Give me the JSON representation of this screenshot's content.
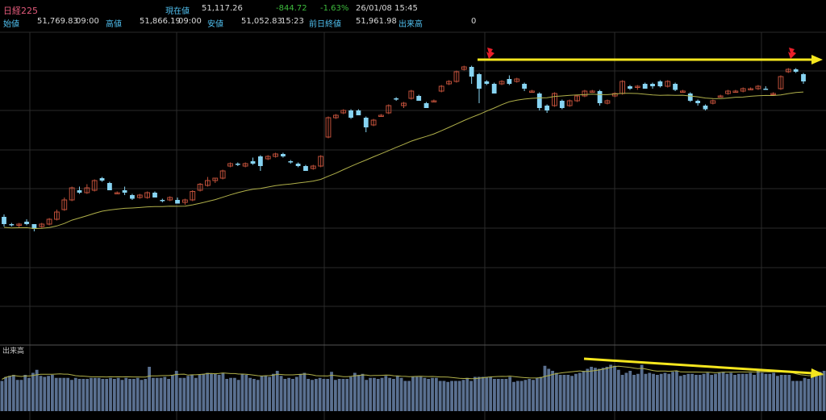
{
  "header": {
    "symbol": "日経225",
    "current_label": "現在値",
    "current_value": "51,117.26",
    "change": "-844.72",
    "change_pct": "-1.63%",
    "datetime": "26/01/08  15:45",
    "open_label": "始値",
    "open_value": "51,769.83",
    "open_time": "09:00",
    "high_label": "高値",
    "high_value": "51,866.19",
    "high_time": "09:00",
    "low_label": "安値",
    "low_value": "51,052.83",
    "low_time": "15:23",
    "prev_label": "前日終値",
    "prev_value": "51,961.98",
    "volume_label": "出来高",
    "volume_value": "0"
  },
  "colors": {
    "up": "#c0503a",
    "down": "#87d4f2",
    "ma": "#b0b04a",
    "volume": "#5a7090",
    "annotation": "#f5e61e",
    "marker": "#e8202a",
    "symbol": "#e15a7a",
    "positive": "#3dbb3d",
    "label": "#50c0f0"
  },
  "chart_data": {
    "type": "candlestick",
    "ylim": [
      0,
      100
    ],
    "candles": [
      {
        "o": 37,
        "h": 38,
        "l": 33,
        "c": 34
      },
      {
        "o": 34,
        "h": 34.5,
        "l": 33,
        "c": 33.5
      },
      {
        "o": 33.5,
        "h": 34.5,
        "l": 32.5,
        "c": 34
      },
      {
        "o": 35,
        "h": 36,
        "l": 33.5,
        "c": 34
      },
      {
        "o": 34,
        "h": 34,
        "l": 31,
        "c": 32
      },
      {
        "o": 33,
        "h": 34.5,
        "l": 32.5,
        "c": 34
      },
      {
        "o": 34,
        "h": 36.5,
        "l": 33.5,
        "c": 36
      },
      {
        "o": 36,
        "h": 40,
        "l": 35.5,
        "c": 39
      },
      {
        "o": 40,
        "h": 45,
        "l": 39.5,
        "c": 44
      },
      {
        "o": 44,
        "h": 49.5,
        "l": 43.5,
        "c": 49
      },
      {
        "o": 48,
        "h": 49.5,
        "l": 46.5,
        "c": 47
      },
      {
        "o": 47,
        "h": 50.5,
        "l": 46.5,
        "c": 49
      },
      {
        "o": 48,
        "h": 52.5,
        "l": 47.5,
        "c": 52
      },
      {
        "o": 53,
        "h": 53.5,
        "l": 51.5,
        "c": 52
      },
      {
        "o": 51,
        "h": 51.5,
        "l": 48,
        "c": 48
      },
      {
        "o": 47,
        "h": 47.5,
        "l": 46.5,
        "c": 47
      },
      {
        "o": 48,
        "h": 49.5,
        "l": 46,
        "c": 47
      },
      {
        "o": 46,
        "h": 46.5,
        "l": 44,
        "c": 44.5
      },
      {
        "o": 45,
        "h": 46.5,
        "l": 44.5,
        "c": 46
      },
      {
        "o": 45,
        "h": 47.5,
        "l": 44.5,
        "c": 47
      },
      {
        "o": 47,
        "h": 47.5,
        "l": 45,
        "c": 45
      },
      {
        "o": 44,
        "h": 44.5,
        "l": 43,
        "c": 43.5
      },
      {
        "o": 44,
        "h": 45.5,
        "l": 43.5,
        "c": 45
      },
      {
        "o": 44,
        "h": 45,
        "l": 42.5,
        "c": 42.5
      },
      {
        "o": 43,
        "h": 44.5,
        "l": 42,
        "c": 44
      },
      {
        "o": 44,
        "h": 48,
        "l": 43.5,
        "c": 47.5
      },
      {
        "o": 48,
        "h": 51,
        "l": 47.5,
        "c": 50.5
      },
      {
        "o": 50,
        "h": 53.5,
        "l": 49.5,
        "c": 52
      },
      {
        "o": 52,
        "h": 53,
        "l": 51,
        "c": 53
      },
      {
        "o": 53,
        "h": 56.5,
        "l": 52.5,
        "c": 56
      },
      {
        "o": 58,
        "h": 59.5,
        "l": 57.5,
        "c": 59
      },
      {
        "o": 59,
        "h": 59.5,
        "l": 58,
        "c": 58.5
      },
      {
        "o": 58,
        "h": 59.5,
        "l": 57.5,
        "c": 59
      },
      {
        "o": 60,
        "h": 61.5,
        "l": 58.5,
        "c": 59
      },
      {
        "o": 62,
        "h": 62.5,
        "l": 56,
        "c": 58
      },
      {
        "o": 61,
        "h": 62.5,
        "l": 60.5,
        "c": 62
      },
      {
        "o": 62,
        "h": 63.5,
        "l": 61.5,
        "c": 63
      },
      {
        "o": 63,
        "h": 63.5,
        "l": 61.5,
        "c": 62
      },
      {
        "o": 60,
        "h": 60.5,
        "l": 59,
        "c": 59.5
      },
      {
        "o": 59,
        "h": 59.5,
        "l": 57.5,
        "c": 58
      },
      {
        "o": 58,
        "h": 58.5,
        "l": 56,
        "c": 56
      },
      {
        "o": 57,
        "h": 58.5,
        "l": 56.5,
        "c": 58
      },
      {
        "o": 58,
        "h": 62.5,
        "l": 57.5,
        "c": 62
      },
      {
        "o": 70,
        "h": 78.5,
        "l": 69.5,
        "c": 78
      },
      {
        "o": 78,
        "h": 79.5,
        "l": 77.5,
        "c": 79
      },
      {
        "o": 80,
        "h": 81.5,
        "l": 79.5,
        "c": 81
      },
      {
        "o": 81,
        "h": 81.5,
        "l": 77.5,
        "c": 78
      },
      {
        "o": 81,
        "h": 81.5,
        "l": 79,
        "c": 79
      },
      {
        "o": 78,
        "h": 78.5,
        "l": 72,
        "c": 74
      },
      {
        "o": 75,
        "h": 77.5,
        "l": 74.5,
        "c": 77
      },
      {
        "o": 79,
        "h": 79.5,
        "l": 78.5,
        "c": 79
      },
      {
        "o": 80,
        "h": 83.5,
        "l": 79.5,
        "c": 83
      },
      {
        "o": 86,
        "h": 86.5,
        "l": 85,
        "c": 85.5
      },
      {
        "o": 83,
        "h": 84.5,
        "l": 82,
        "c": 84
      },
      {
        "o": 86,
        "h": 89.5,
        "l": 85.5,
        "c": 89
      },
      {
        "o": 87,
        "h": 87.5,
        "l": 85,
        "c": 85
      },
      {
        "o": 84,
        "h": 84.5,
        "l": 82,
        "c": 82
      },
      {
        "o": 85,
        "h": 85.5,
        "l": 84.5,
        "c": 85
      },
      {
        "o": 89,
        "h": 91.5,
        "l": 88.5,
        "c": 91
      },
      {
        "o": 92,
        "h": 93.5,
        "l": 91.5,
        "c": 93
      },
      {
        "o": 93,
        "h": 97.5,
        "l": 92.5,
        "c": 97
      },
      {
        "o": 98,
        "h": 99.5,
        "l": 97.5,
        "c": 99
      },
      {
        "o": 99,
        "h": 99.5,
        "l": 92,
        "c": 95
      },
      {
        "o": 96,
        "h": 96.5,
        "l": 84,
        "c": 90
      },
      {
        "o": 93,
        "h": 93.5,
        "l": 91.5,
        "c": 92
      },
      {
        "o": 92,
        "h": 92.5,
        "l": 88,
        "c": 88
      },
      {
        "o": 92,
        "h": 93.5,
        "l": 91.5,
        "c": 93
      },
      {
        "o": 94,
        "h": 95.5,
        "l": 91.5,
        "c": 92
      },
      {
        "o": 93,
        "h": 94.5,
        "l": 92.5,
        "c": 94
      },
      {
        "o": 92,
        "h": 92.5,
        "l": 89,
        "c": 90
      },
      {
        "o": 89,
        "h": 89.5,
        "l": 88.5,
        "c": 89
      },
      {
        "o": 88,
        "h": 88.5,
        "l": 81,
        "c": 82
      },
      {
        "o": 83,
        "h": 83.5,
        "l": 80,
        "c": 81
      },
      {
        "o": 83,
        "h": 88.5,
        "l": 82.5,
        "c": 88
      },
      {
        "o": 85,
        "h": 85.5,
        "l": 81.5,
        "c": 82
      },
      {
        "o": 83,
        "h": 85.5,
        "l": 82.5,
        "c": 85
      },
      {
        "o": 85,
        "h": 87.5,
        "l": 84.5,
        "c": 87
      },
      {
        "o": 87,
        "h": 89.5,
        "l": 86.5,
        "c": 89
      },
      {
        "o": 89,
        "h": 89.5,
        "l": 88.5,
        "c": 89
      },
      {
        "o": 89,
        "h": 89.5,
        "l": 83,
        "c": 84
      },
      {
        "o": 84,
        "h": 85.5,
        "l": 83.5,
        "c": 85
      },
      {
        "o": 87,
        "h": 88.5,
        "l": 86.5,
        "c": 88
      },
      {
        "o": 88,
        "h": 93.5,
        "l": 87.5,
        "c": 93
      },
      {
        "o": 91,
        "h": 91.5,
        "l": 89.5,
        "c": 90
      },
      {
        "o": 91,
        "h": 91.5,
        "l": 89.5,
        "c": 91
      },
      {
        "o": 92,
        "h": 92.5,
        "l": 90,
        "c": 90
      },
      {
        "o": 92,
        "h": 92.5,
        "l": 90,
        "c": 91
      },
      {
        "o": 93,
        "h": 93.5,
        "l": 90.5,
        "c": 91
      },
      {
        "o": 91,
        "h": 93.5,
        "l": 90.5,
        "c": 93
      },
      {
        "o": 92,
        "h": 92.5,
        "l": 89,
        "c": 89.5
      },
      {
        "o": 89,
        "h": 89.5,
        "l": 88.5,
        "c": 89
      },
      {
        "o": 88,
        "h": 88.5,
        "l": 84.5,
        "c": 85
      },
      {
        "o": 85,
        "h": 85.5,
        "l": 83,
        "c": 84
      },
      {
        "o": 83,
        "h": 83.5,
        "l": 81,
        "c": 81.5
      },
      {
        "o": 84,
        "h": 85.5,
        "l": 83.5,
        "c": 85
      },
      {
        "o": 87,
        "h": 87.5,
        "l": 86.5,
        "c": 87
      },
      {
        "o": 88,
        "h": 89.5,
        "l": 87.5,
        "c": 89
      },
      {
        "o": 89,
        "h": 89.5,
        "l": 88.5,
        "c": 89
      },
      {
        "o": 89,
        "h": 90.5,
        "l": 88.5,
        "c": 90
      },
      {
        "o": 90,
        "h": 90.5,
        "l": 89.5,
        "c": 90
      },
      {
        "o": 90,
        "h": 91.5,
        "l": 89.5,
        "c": 91
      },
      {
        "o": 90,
        "h": 91,
        "l": 89.5,
        "c": 89.5
      },
      {
        "o": 88,
        "h": 88.5,
        "l": 87.5,
        "c": 88
      },
      {
        "o": 90,
        "h": 95.5,
        "l": 89.5,
        "c": 95
      },
      {
        "o": 97,
        "h": 98.5,
        "l": 96.5,
        "c": 98
      },
      {
        "o": 98,
        "h": 98.5,
        "l": 96.5,
        "c": 97
      },
      {
        "o": 96,
        "h": 96.5,
        "l": 92,
        "c": 93
      }
    ],
    "volume_title": "出来高",
    "volume": [
      30,
      34,
      35,
      36,
      31,
      31,
      36,
      33,
      38,
      41,
      35,
      34,
      35,
      36,
      33,
      33,
      33,
      33,
      31,
      33,
      32,
      32,
      32,
      33,
      33,
      33,
      32,
      32,
      33,
      32,
      33,
      31,
      33,
      32,
      32,
      33,
      31,
      32,
      44,
      33,
      33,
      33,
      34,
      32,
      36,
      40,
      33,
      33,
      35,
      36,
      33,
      36,
      37,
      38,
      37,
      37,
      36,
      38,
      32,
      33,
      33,
      31,
      37,
      36,
      33,
      32,
      31,
      35,
      35,
      34,
      37,
      40,
      35,
      32,
      33,
      32,
      34,
      37,
      38,
      32,
      31,
      32,
      33,
      32,
      32,
      39,
      31,
      32,
      32,
      32,
      34,
      38,
      36,
      37,
      31,
      33,
      33,
      32,
      33,
      35,
      33,
      32,
      35,
      33,
      30,
      30,
      34,
      34,
      34,
      33,
      32,
      33,
      33,
      30,
      30,
      29,
      30,
      30,
      30,
      31,
      33,
      30,
      34,
      34,
      34,
      34,
      34,
      32,
      32,
      32,
      32,
      34,
      29,
      30,
      30,
      31,
      32,
      31,
      33,
      34,
      45,
      42,
      40,
      38,
      36,
      36,
      36,
      35,
      37,
      38,
      40,
      42,
      44,
      43,
      42,
      43,
      44,
      46,
      45,
      41,
      36,
      38,
      40,
      36,
      37,
      46,
      37,
      38,
      37,
      36,
      37,
      38,
      37,
      39,
      40,
      35,
      36,
      37,
      37,
      36,
      36,
      37,
      38,
      36,
      37,
      38,
      39,
      37,
      38,
      36,
      37,
      37,
      37,
      38,
      36,
      40,
      38,
      37,
      37,
      38,
      35,
      36,
      36,
      36,
      30,
      30,
      30,
      33,
      32,
      38,
      38,
      39,
      40
    ]
  }
}
